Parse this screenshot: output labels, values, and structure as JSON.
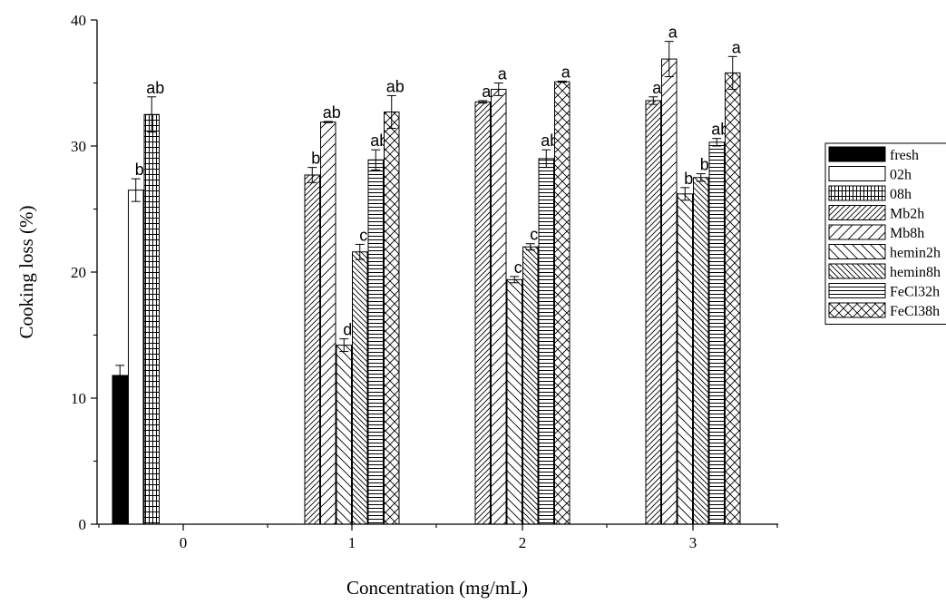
{
  "chart_data": {
    "type": "bar",
    "title": "",
    "xlabel": "Concentration (mg/mL)",
    "ylabel": "Cooking loss (%)",
    "ylim": [
      0,
      40
    ],
    "yticks": [
      "0",
      "10",
      "20",
      "30",
      "40"
    ],
    "categories": [
      "0",
      "1",
      "2",
      "3"
    ],
    "legend_position": "right",
    "legend": [
      "fresh",
      "02h",
      "08h",
      "Mb2h",
      "Mb8h",
      "hemin2h",
      "hemin8h",
      "FeCl32h",
      "FeCl38h"
    ],
    "bars": [
      {
        "series": "fresh",
        "category": "0",
        "value": 11.8,
        "error": 0.8,
        "letter": ""
      },
      {
        "series": "02h",
        "category": "0",
        "value": 26.5,
        "error": 0.9,
        "letter": "b"
      },
      {
        "series": "08h",
        "category": "0",
        "value": 32.5,
        "error": 1.4,
        "letter": "ab"
      },
      {
        "series": "Mb2h",
        "category": "1",
        "value": 27.7,
        "error": 0.6,
        "letter": "b"
      },
      {
        "series": "Mb8h",
        "category": "1",
        "value": 31.9,
        "error": 0.05,
        "letter": "ab"
      },
      {
        "series": "hemin2h",
        "category": "1",
        "value": 14.2,
        "error": 0.5,
        "letter": "d"
      },
      {
        "series": "hemin8h",
        "category": "1",
        "value": 21.6,
        "error": 0.6,
        "letter": "c"
      },
      {
        "series": "FeCl32h",
        "category": "1",
        "value": 28.9,
        "error": 0.8,
        "letter": "ab"
      },
      {
        "series": "FeCl38h",
        "category": "1",
        "value": 32.7,
        "error": 1.3,
        "letter": "ab"
      },
      {
        "series": "Mb2h",
        "category": "2",
        "value": 33.5,
        "error": 0.1,
        "letter": "a"
      },
      {
        "series": "Mb8h",
        "category": "2",
        "value": 34.5,
        "error": 0.5,
        "letter": "a"
      },
      {
        "series": "hemin2h",
        "category": "2",
        "value": 19.4,
        "error": 0.25,
        "letter": "c"
      },
      {
        "series": "hemin8h",
        "category": "2",
        "value": 22.0,
        "error": 0.25,
        "letter": "c"
      },
      {
        "series": "FeCl32h",
        "category": "2",
        "value": 29.0,
        "error": 0.7,
        "letter": "ab"
      },
      {
        "series": "FeCl38h",
        "category": "2",
        "value": 35.1,
        "error": 0.05,
        "letter": "a"
      },
      {
        "series": "Mb2h",
        "category": "3",
        "value": 33.6,
        "error": 0.3,
        "letter": "a"
      },
      {
        "series": "Mb8h",
        "category": "3",
        "value": 36.9,
        "error": 1.4,
        "letter": "a"
      },
      {
        "series": "hemin2h",
        "category": "3",
        "value": 26.2,
        "error": 0.5,
        "letter": "b"
      },
      {
        "series": "hemin8h",
        "category": "3",
        "value": 27.5,
        "error": 0.3,
        "letter": "b"
      },
      {
        "series": "FeCl32h",
        "category": "3",
        "value": 30.3,
        "error": 0.3,
        "letter": "ab"
      },
      {
        "series": "FeCl38h",
        "category": "3",
        "value": 35.8,
        "error": 1.3,
        "letter": "a"
      }
    ]
  }
}
